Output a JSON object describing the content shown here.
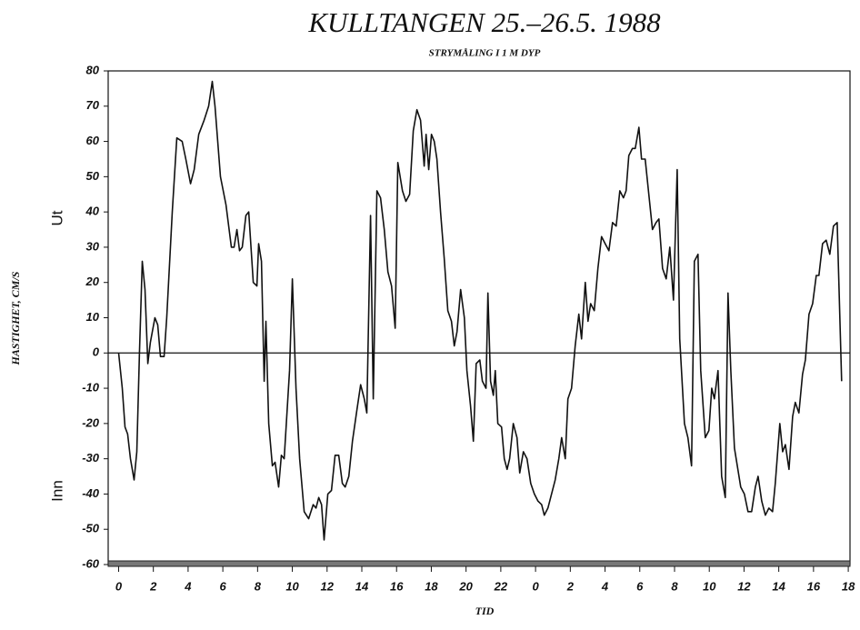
{
  "chart_data": {
    "type": "line",
    "title": "KULLTANGEN 25.–26.5. 1988",
    "subtitle": "STRYMÅLING I 1 M DYP",
    "ylabel": "HASTIGHET, CM/S",
    "xlabel": "TID",
    "annotations": [
      "Ut",
      "Inn"
    ],
    "x": [
      0,
      0.21,
      0.37,
      0.52,
      0.68,
      0.89,
      1.05,
      1.2,
      1.36,
      1.52,
      1.68,
      1.83,
      2.09,
      2.25,
      2.41,
      2.62,
      2.77,
      3.09,
      3.35,
      3.66,
      3.87,
      4.14,
      4.35,
      4.61,
      4.92,
      5.18,
      5.39,
      5.55,
      5.86,
      6.18,
      6.49,
      6.65,
      6.81,
      6.96,
      7.12,
      7.33,
      7.49,
      7.75,
      7.96,
      8.06,
      8.22,
      8.38,
      8.48,
      8.64,
      8.85,
      9.01,
      9.21,
      9.37,
      9.53,
      9.84,
      10.0,
      10.21,
      10.42,
      10.68,
      10.94,
      11.2,
      11.36,
      11.52,
      11.68,
      11.83,
      12.04,
      12.25,
      12.46,
      12.67,
      12.88,
      13.04,
      13.25,
      13.46,
      13.72,
      13.93,
      14.14,
      14.29,
      14.5,
      14.66,
      14.87,
      15.08,
      15.29,
      15.5,
      15.71,
      15.92,
      16.07,
      16.34,
      16.54,
      16.75,
      16.96,
      17.17,
      17.38,
      17.59,
      17.7,
      17.85,
      18.01,
      18.17,
      18.32,
      18.53,
      18.74,
      18.95,
      19.16,
      19.32,
      19.48,
      19.69,
      19.9,
      20.05,
      20.26,
      20.42,
      20.58,
      20.79,
      20.94,
      21.15,
      21.26,
      21.41,
      21.57,
      21.68,
      21.83,
      22.04,
      22.2,
      22.36,
      22.51,
      22.72,
      22.93,
      23.09,
      23.3,
      23.51,
      23.72,
      23.93,
      24.14,
      24.35,
      24.5,
      24.71,
      24.92,
      25.13,
      25.34,
      25.5,
      25.71,
      25.86,
      26.07,
      26.28,
      26.49,
      26.65,
      26.86,
      27.02,
      27.17,
      27.38,
      27.59,
      27.8,
      28.01,
      28.22,
      28.43,
      28.64,
      28.85,
      29.06,
      29.21,
      29.37,
      29.58,
      29.74,
      29.95,
      30.1,
      30.31,
      30.52,
      30.73,
      30.94,
      31.1,
      31.31,
      31.52,
      31.73,
      31.94,
      32.15,
      32.3,
      32.57,
      32.77,
      32.98,
      33.14,
      33.35,
      33.51,
      33.77,
      33.98,
      34.14,
      34.29,
      34.5,
      34.71,
      34.92,
      35.08,
      35.24,
      35.45,
      35.81,
      36.02,
      36.23,
      36.44,
      36.65,
      36.81,
      37.02,
      37.23,
      37.43,
      37.64,
      37.8,
      38.06,
      38.22,
      38.38,
      38.59,
      38.8,
      38.95,
      39.16,
      39.37,
      39.53,
      39.74,
      39.95,
      40.16,
      40.31,
      40.52,
      40.73,
      40.94,
      41.15,
      41.36,
      41.62
    ],
    "series": [
      {
        "color": "#111111",
        "values": [
          0,
          -10,
          -21,
          -23,
          -30,
          -36,
          -28,
          0,
          26,
          18,
          -3,
          3,
          10,
          8,
          -1,
          -1,
          10,
          40,
          61,
          60,
          55,
          48,
          52,
          62,
          66,
          70,
          77,
          70,
          50,
          42,
          30,
          30,
          35,
          29,
          30,
          39,
          40,
          20,
          19,
          31,
          26,
          -8,
          9,
          -20,
          -32,
          -31,
          -38,
          -29,
          -30,
          -5,
          21,
          -10,
          -30,
          -45,
          -47,
          -43,
          -44,
          -41,
          -43,
          -53,
          -40,
          -39,
          -29,
          -29,
          -37,
          -38,
          -35,
          -25,
          -16,
          -9,
          -13,
          -17,
          39,
          -13,
          46,
          44,
          35,
          23,
          19,
          7,
          54,
          46,
          43,
          45,
          63,
          69,
          66,
          53,
          62,
          52,
          62,
          60,
          55,
          40,
          27,
          12,
          9,
          2,
          6,
          18,
          10,
          -5,
          -15,
          -25,
          -3,
          -2,
          -8,
          -10,
          17,
          -8,
          -12,
          -5,
          -20,
          -21,
          -30,
          -33,
          -30,
          -20,
          -24,
          -34,
          -28,
          -30,
          -37,
          -40,
          -42,
          -43,
          -46,
          -44,
          -40,
          -36,
          -30,
          -24,
          -30,
          -13,
          -10,
          2,
          11,
          4,
          20,
          9,
          14,
          12,
          24,
          33,
          31,
          29,
          37,
          36,
          46,
          44,
          46,
          56,
          58,
          58,
          64,
          55,
          55,
          45,
          35,
          37,
          38,
          24,
          21,
          30,
          15,
          52,
          4,
          -20,
          -24,
          -32,
          26,
          28,
          -5,
          -24,
          -22,
          -10,
          -13,
          -5,
          -35,
          -41,
          17,
          -5,
          -27,
          -38,
          -40,
          -45,
          -45,
          -38,
          -35,
          -42,
          -46,
          -44,
          -45,
          -37,
          -20,
          -28,
          -26,
          -33,
          -18,
          -14,
          -17,
          -6,
          -2,
          11,
          14,
          22,
          22,
          31,
          32,
          28,
          36,
          37,
          -8
        ]
      }
    ],
    "xlim": [
      -0.6,
      42.1
    ],
    "ylim": [
      -60,
      80
    ],
    "xticks": [
      0,
      2,
      4,
      6,
      8,
      10,
      12,
      14,
      16,
      18,
      20,
      22,
      {
        "value": 24,
        "label": "0"
      },
      {
        "value": 26,
        "label": "2"
      },
      {
        "value": 28,
        "label": "4"
      },
      {
        "value": 30,
        "label": "6"
      },
      {
        "value": 32,
        "label": "8"
      },
      {
        "value": 34,
        "label": "10"
      },
      {
        "value": 36,
        "label": "12"
      },
      {
        "value": 38,
        "label": "14"
      },
      {
        "value": 40,
        "label": "16"
      },
      {
        "value": 42,
        "label": "18"
      }
    ],
    "yticks": [
      -60,
      -50,
      -40,
      -30,
      -20,
      -10,
      0,
      10,
      20,
      30,
      40,
      50,
      60,
      70,
      80
    ]
  }
}
